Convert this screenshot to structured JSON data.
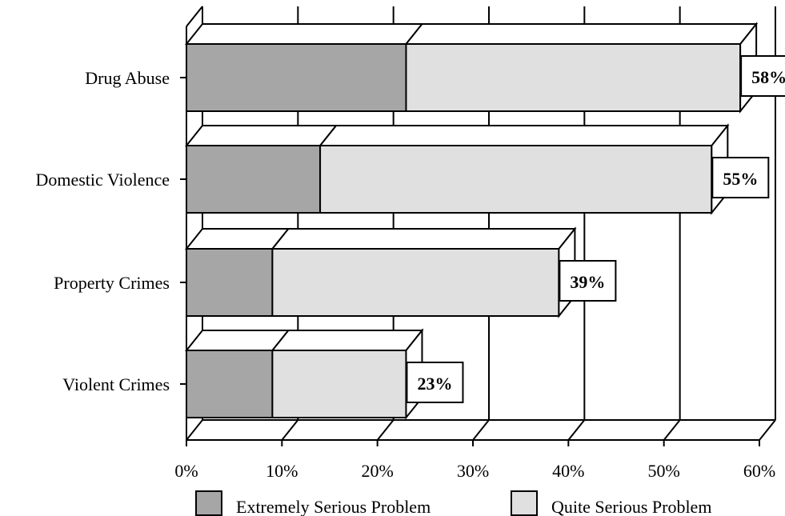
{
  "chart_data": {
    "type": "bar",
    "orientation": "horizontal",
    "stacked": true,
    "three_d": true,
    "categories": [
      "Drug Abuse",
      "Domestic Violence",
      "Property Crimes",
      "Violent Crimes"
    ],
    "series": [
      {
        "name": "Extremely Serious Problem",
        "values": [
          23,
          14,
          9,
          9
        ],
        "color": "#a6a6a6"
      },
      {
        "name": "Quite Serious Problem",
        "values": [
          35,
          41,
          30,
          14
        ],
        "color": "#e0e0e0"
      }
    ],
    "totals": [
      58,
      55,
      39,
      23
    ],
    "data_labels": [
      "58%",
      "55%",
      "39%",
      "23%"
    ],
    "x_ticks": [
      "0%",
      "10%",
      "20%",
      "30%",
      "40%",
      "50%",
      "60%"
    ],
    "xlim": [
      0,
      60
    ],
    "grid": true,
    "legend_position": "bottom"
  }
}
